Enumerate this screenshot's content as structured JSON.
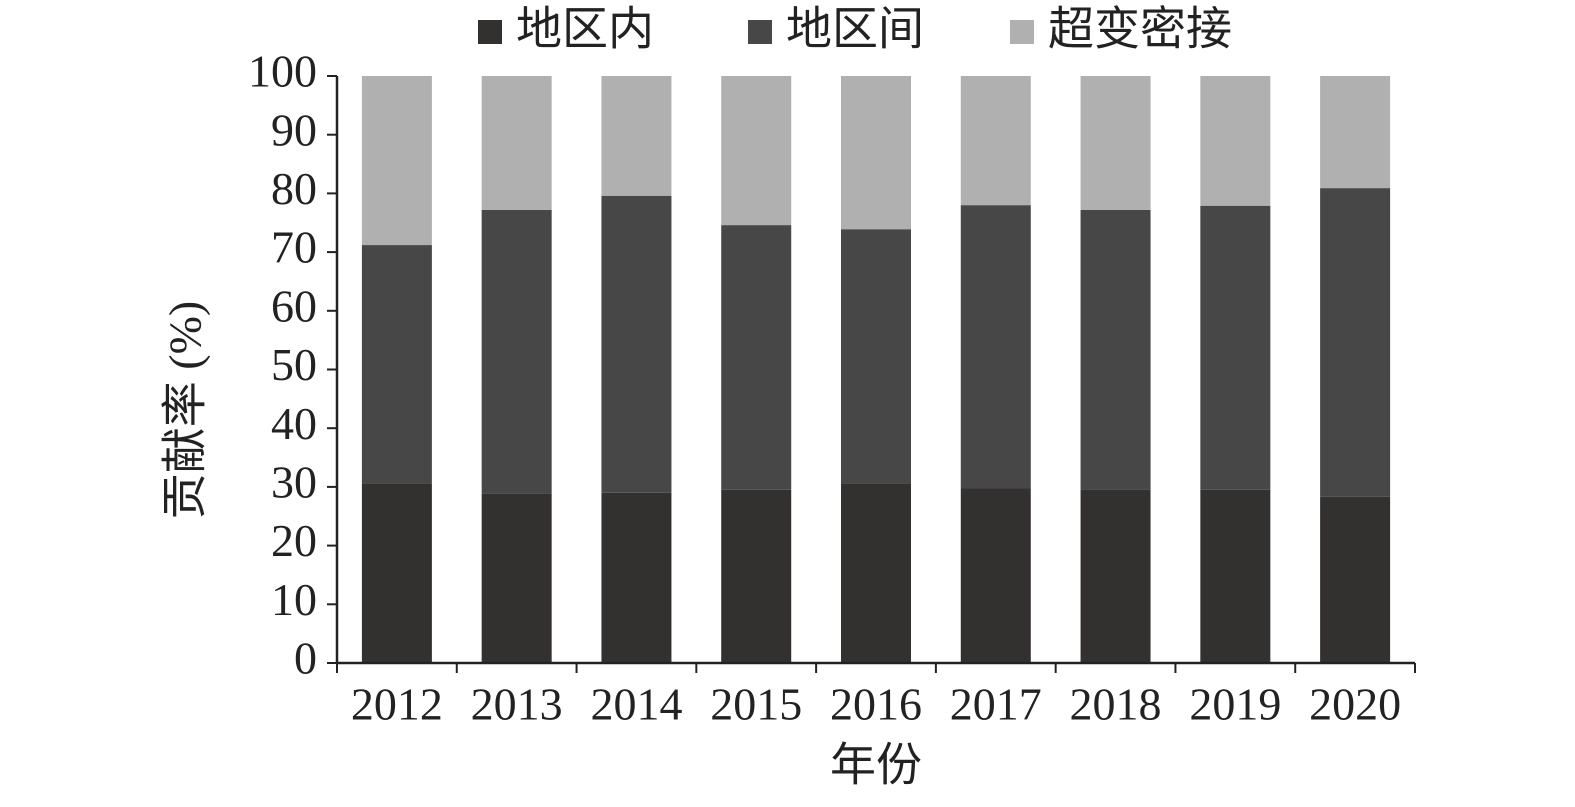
{
  "chart_data": {
    "type": "stacked_bar",
    "y_label": "贡献率 (%)",
    "x_label": "年份",
    "categories": [
      "2012",
      "2013",
      "2014",
      "2015",
      "2016",
      "2017",
      "2018",
      "2019",
      "2020"
    ],
    "series": [
      {
        "name": "地区内",
        "color": "#333130",
        "values": [
          30.5,
          28.8,
          29.0,
          29.5,
          30.5,
          29.8,
          29.6,
          29.5,
          28.3
        ]
      },
      {
        "name": "地区间",
        "color": "#474747",
        "values": [
          40.7,
          48.4,
          50.6,
          45.1,
          43.4,
          48.2,
          47.6,
          48.4,
          52.6
        ]
      },
      {
        "name": "超变密接",
        "color": "#b0b0b0",
        "values": [
          28.8,
          22.8,
          20.4,
          25.4,
          26.1,
          22.0,
          22.8,
          22.1,
          19.1
        ]
      }
    ],
    "ylim": [
      0,
      100
    ],
    "yticks": [
      0,
      10,
      20,
      30,
      40,
      50,
      60,
      70,
      80,
      90,
      100
    ]
  }
}
